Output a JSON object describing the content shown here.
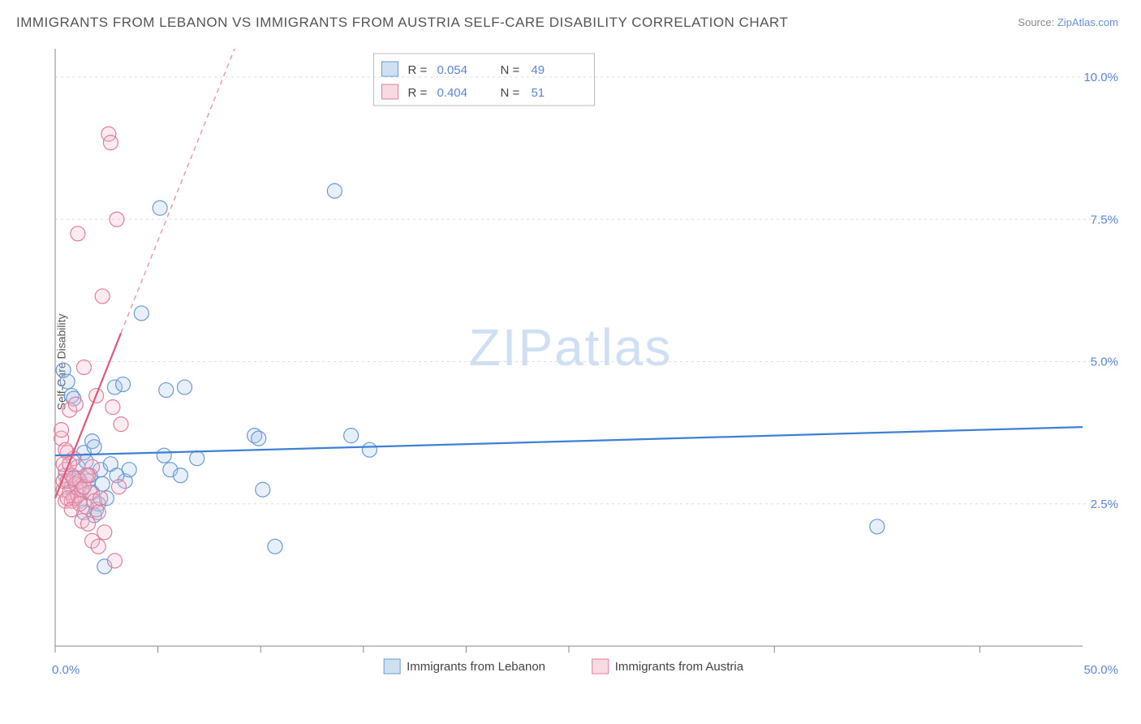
{
  "title": "IMMIGRANTS FROM LEBANON VS IMMIGRANTS FROM AUSTRIA SELF-CARE DISABILITY CORRELATION CHART",
  "source_label": "Source:",
  "source_value": "ZipAtlas.com",
  "ylabel": "Self-Care Disability",
  "watermark_a": "ZIP",
  "watermark_b": "atlas",
  "chart": {
    "type": "scatter",
    "background_color": "#ffffff",
    "grid_color": "#dedede",
    "grid_dash": "3,4",
    "axis_color": "#888888",
    "xlim": [
      0,
      50
    ],
    "ylim": [
      0,
      10.5
    ],
    "x_ticks": [
      0,
      5,
      10,
      15,
      20,
      25,
      35,
      45
    ],
    "y_ticks": [
      2.5,
      5.0,
      7.5,
      10.0
    ],
    "y_tick_labels": [
      "2.5%",
      "5.0%",
      "7.5%",
      "10.0%"
    ],
    "x_min_label": "0.0%",
    "x_max_label": "50.0%",
    "marker_radius": 9,
    "marker_stroke_width": 1.2,
    "marker_fill_opacity": 0.28,
    "series": [
      {
        "key": "lebanon",
        "label": "Immigrants from Lebanon",
        "color_stroke": "#6a9ad6",
        "color_fill": "#a9c7ea",
        "r_value": "0.054",
        "n_value": "49",
        "trend": {
          "x1": 0,
          "y1": 3.35,
          "x2": 50,
          "y2": 3.85,
          "dash": "none",
          "width": 2.25,
          "color": "#3f7fd4"
        },
        "points": [
          [
            0.4,
            4.85
          ],
          [
            0.6,
            4.65
          ],
          [
            0.8,
            4.4
          ],
          [
            0.9,
            4.35
          ],
          [
            1.1,
            3.15
          ],
          [
            1.2,
            2.55
          ],
          [
            1.4,
            2.35
          ],
          [
            1.6,
            2.9
          ],
          [
            1.7,
            3.0
          ],
          [
            1.8,
            2.7
          ],
          [
            1.9,
            2.3
          ],
          [
            2.1,
            2.5
          ],
          [
            2.2,
            3.1
          ],
          [
            2.4,
            1.4
          ],
          [
            2.9,
            4.55
          ],
          [
            3.3,
            4.6
          ],
          [
            3.4,
            2.9
          ],
          [
            3.6,
            3.1
          ],
          [
            4.2,
            5.85
          ],
          [
            5.1,
            7.7
          ],
          [
            5.3,
            3.35
          ],
          [
            5.4,
            4.5
          ],
          [
            5.6,
            3.1
          ],
          [
            6.1,
            3.0
          ],
          [
            6.3,
            4.55
          ],
          [
            6.9,
            3.3
          ],
          [
            9.7,
            3.7
          ],
          [
            9.9,
            3.65
          ],
          [
            10.1,
            2.75
          ],
          [
            10.7,
            1.75
          ],
          [
            13.6,
            8.0
          ],
          [
            14.4,
            3.7
          ],
          [
            15.3,
            3.45
          ],
          [
            40.0,
            2.1
          ],
          [
            0.5,
            3.0
          ],
          [
            0.7,
            2.9
          ],
          [
            0.8,
            2.8
          ],
          [
            1.0,
            2.6
          ],
          [
            1.1,
            2.95
          ],
          [
            1.3,
            2.75
          ],
          [
            1.4,
            3.4
          ],
          [
            1.5,
            3.25
          ],
          [
            1.8,
            3.6
          ],
          [
            1.9,
            3.5
          ],
          [
            2.0,
            2.4
          ],
          [
            2.3,
            2.85
          ],
          [
            2.5,
            2.6
          ],
          [
            2.7,
            3.2
          ],
          [
            3.0,
            3.0
          ]
        ]
      },
      {
        "key": "austria",
        "label": "Immigrants from Austria",
        "color_stroke": "#e07f9a",
        "color_fill": "#f3bccb",
        "r_value": "0.404",
        "n_value": "51",
        "trend": {
          "x1": 0,
          "y1": 2.6,
          "x2": 3.2,
          "y2": 5.5,
          "dash": "none",
          "width": 2.25,
          "color": "#dc5b7e"
        },
        "trend_ext": {
          "x1": 3.2,
          "y1": 5.5,
          "x2": 11.5,
          "y2": 13.0,
          "dash": "6,5",
          "width": 1.5,
          "color": "#e99bb1"
        },
        "points": [
          [
            0.3,
            3.65
          ],
          [
            0.3,
            3.8
          ],
          [
            0.4,
            2.75
          ],
          [
            0.4,
            2.9
          ],
          [
            0.5,
            2.55
          ],
          [
            0.5,
            3.1
          ],
          [
            0.6,
            2.9
          ],
          [
            0.6,
            3.4
          ],
          [
            0.7,
            4.15
          ],
          [
            0.7,
            2.7
          ],
          [
            0.8,
            3.0
          ],
          [
            0.8,
            2.55
          ],
          [
            0.9,
            2.6
          ],
          [
            0.9,
            3.3
          ],
          [
            1.0,
            2.85
          ],
          [
            1.0,
            4.25
          ],
          [
            1.1,
            7.25
          ],
          [
            1.1,
            2.65
          ],
          [
            1.2,
            2.9
          ],
          [
            1.3,
            2.2
          ],
          [
            1.3,
            2.75
          ],
          [
            1.4,
            4.9
          ],
          [
            1.5,
            3.0
          ],
          [
            1.5,
            2.45
          ],
          [
            1.6,
            2.15
          ],
          [
            1.7,
            2.7
          ],
          [
            1.8,
            1.85
          ],
          [
            1.8,
            3.15
          ],
          [
            1.9,
            2.55
          ],
          [
            2.0,
            4.4
          ],
          [
            2.1,
            1.75
          ],
          [
            2.1,
            2.35
          ],
          [
            2.2,
            2.6
          ],
          [
            2.3,
            6.15
          ],
          [
            2.4,
            2.0
          ],
          [
            2.6,
            9.0
          ],
          [
            2.7,
            8.85
          ],
          [
            2.8,
            4.2
          ],
          [
            2.9,
            1.5
          ],
          [
            3.0,
            7.5
          ],
          [
            3.1,
            2.8
          ],
          [
            3.2,
            3.9
          ],
          [
            0.4,
            3.2
          ],
          [
            0.5,
            3.45
          ],
          [
            0.6,
            2.6
          ],
          [
            0.7,
            3.2
          ],
          [
            0.8,
            2.4
          ],
          [
            0.9,
            2.95
          ],
          [
            1.2,
            2.5
          ],
          [
            1.4,
            2.8
          ],
          [
            1.6,
            3.0
          ]
        ]
      }
    ],
    "legend_top": {
      "r_label": "R =",
      "n_label": "N ="
    },
    "legend_bottom_swatch_stroke": "#bbb"
  }
}
